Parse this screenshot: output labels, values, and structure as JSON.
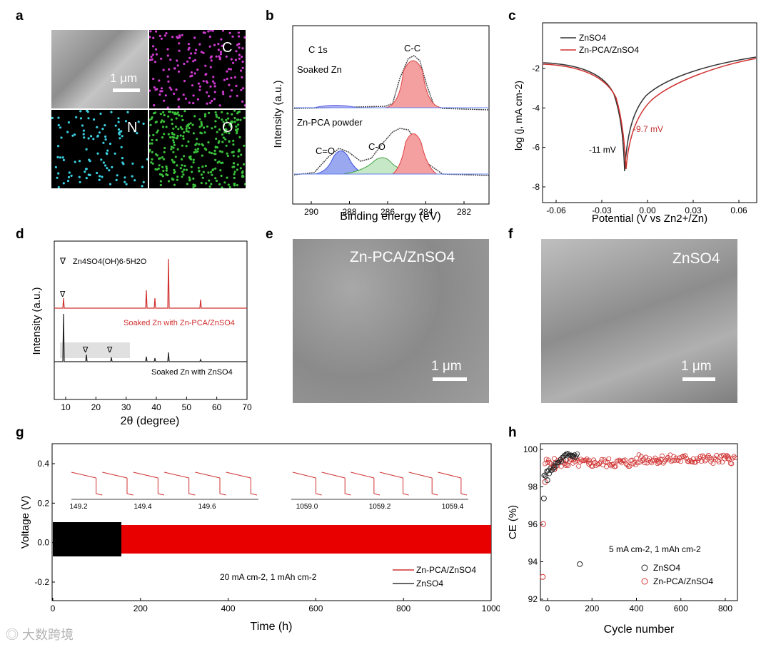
{
  "panels": {
    "a": {
      "letter": "a",
      "labels": {
        "c": "C",
        "n": "N",
        "o": "O"
      },
      "scale": "1 μm",
      "colors": {
        "c": "#d03ad0",
        "n": "#3ad0e0",
        "o": "#3ac03a"
      }
    },
    "b": {
      "letter": "b",
      "spectrum": "C 1s",
      "top_label": "Soaked Zn",
      "bottom_label": "Zn-PCA powder",
      "peaks": [
        "C-C",
        "C=O",
        "C-O"
      ],
      "xlabel": "Binding energy (eV)",
      "ylabel": "Intensity (a.u.)",
      "xticks": [
        "290",
        "288",
        "286",
        "284",
        "282"
      ]
    },
    "c": {
      "letter": "c",
      "legend": [
        "ZnSO4",
        "Zn-PCA/ZnSO4"
      ],
      "annot_black": "-11 mV",
      "annot_red": "-9.7 mV",
      "xlabel": "Potential (V vs Zn2+/Zn)",
      "ylabel": "log (j, mA cm-2)",
      "xticks": [
        "-0.06",
        "-0.03",
        "0.00",
        "0.03",
        "0.06"
      ],
      "yticks": [
        "-2",
        "-4",
        "-6",
        "-8"
      ]
    },
    "d": {
      "letter": "d",
      "legend": "Zn4SO4(OH)6·5H2O",
      "red_label": "Soaked Zn with Zn-PCA/ZnSO4",
      "black_label": "Soaked Zn with ZnSO4",
      "xlabel": "2θ (degree)",
      "ylabel": "Intensity (a.u.)",
      "xticks": [
        "10",
        "20",
        "30",
        "40",
        "50",
        "60",
        "70"
      ]
    },
    "e": {
      "letter": "e",
      "label": "Zn-PCA/ZnSO4",
      "scale": "1 μm"
    },
    "f": {
      "letter": "f",
      "label": "ZnSO4",
      "scale": "1 μm"
    },
    "g": {
      "letter": "g",
      "xlabel": "Time (h)",
      "ylabel": "Voltage (V)",
      "xticks": [
        "0",
        "200",
        "400",
        "600",
        "800",
        "1000"
      ],
      "yticks": [
        "0.4",
        "0.2",
        "0.0",
        "-0.2"
      ],
      "condition": "20 mA cm-2, 1 mAh cm-2",
      "legend": [
        "Zn-PCA/ZnSO4",
        "ZnSO4"
      ],
      "inset1_ticks": [
        "149.2",
        "149.4",
        "149.6"
      ],
      "inset2_ticks": [
        "1059.0",
        "1059.2",
        "1059.4"
      ]
    },
    "h": {
      "letter": "h",
      "xlabel": "Cycle number",
      "ylabel": "CE (%)",
      "xticks": [
        "0",
        "200",
        "400",
        "600",
        "800"
      ],
      "yticks": [
        "100",
        "98",
        "96",
        "94",
        "92"
      ],
      "condition": "5 mA cm-2, 1 mAh cm-2",
      "legend": [
        "ZnSO4",
        "Zn-PCA/ZnSO4"
      ]
    }
  },
  "chart_data": [
    {
      "panel": "b",
      "type": "line",
      "title": "C 1s",
      "xlabel": "Binding energy (eV)",
      "ylabel": "Intensity (a.u.)",
      "xlim": [
        291,
        281
      ],
      "series": [
        {
          "name": "Soaked Zn",
          "peaks": [
            {
              "label": "C-C",
              "center": 284.8
            }
          ]
        },
        {
          "name": "Zn-PCA powder",
          "peaks": [
            {
              "label": "C=O",
              "center": 288.2
            },
            {
              "label": "C-O",
              "center": 285.9
            },
            {
              "label": "C-C",
              "center": 284.8
            }
          ]
        }
      ]
    },
    {
      "panel": "c",
      "type": "line",
      "xlabel": "Potential (V vs Zn2+/Zn)",
      "ylabel": "log (j, mA cm-2)",
      "xlim": [
        -0.07,
        0.07
      ],
      "ylim": [
        -8,
        -1
      ],
      "series": [
        {
          "name": "ZnSO4",
          "corrosion_potential_mV": -11
        },
        {
          "name": "Zn-PCA/ZnSO4",
          "corrosion_potential_mV": -9.7
        }
      ]
    },
    {
      "panel": "d",
      "type": "line",
      "xlabel": "2θ (degree)",
      "ylabel": "Intensity (a.u.)",
      "xlim": [
        5,
        70
      ],
      "series": [
        {
          "name": "Soaked Zn with Zn-PCA/ZnSO4",
          "peaks": [
            8.1,
            36.3,
            39.0,
            43.2,
            54.3
          ]
        },
        {
          "name": "Soaked Zn with ZnSO4",
          "peaks": [
            8.1,
            16.3,
            24.4,
            36.3,
            39.0,
            43.2,
            54.3
          ]
        }
      ]
    },
    {
      "panel": "g",
      "type": "line",
      "xlabel": "Time (h)",
      "ylabel": "Voltage (V)",
      "xlim": [
        0,
        1000
      ],
      "ylim": [
        -0.25,
        0.45
      ],
      "series": [
        {
          "name": "Zn-PCA/ZnSO4",
          "x_end": 1000,
          "amplitude": 0.065
        },
        {
          "name": "ZnSO4",
          "x_end": 160,
          "amplitude": 0.08
        }
      ]
    },
    {
      "panel": "h",
      "type": "scatter",
      "xlabel": "Cycle number",
      "ylabel": "CE (%)",
      "xlim": [
        -10,
        840
      ],
      "ylim": [
        92,
        100.6
      ],
      "series": [
        {
          "name": "ZnSO4",
          "points": [
            [
              5,
              97.6
            ],
            [
              20,
              98.6
            ],
            [
              50,
              99.3
            ],
            [
              100,
              99.7
            ],
            [
              130,
              99.9
            ],
            [
              160,
              94.0
            ]
          ]
        },
        {
          "name": "Zn-PCA/ZnSO4",
          "points": [
            [
              0,
              93.3
            ],
            [
              2,
              96.2
            ],
            [
              10,
              98.5
            ],
            [
              50,
              99.2
            ],
            [
              200,
              99.5
            ],
            [
              500,
              99.6
            ],
            [
              800,
              99.8
            ]
          ]
        }
      ]
    }
  ]
}
